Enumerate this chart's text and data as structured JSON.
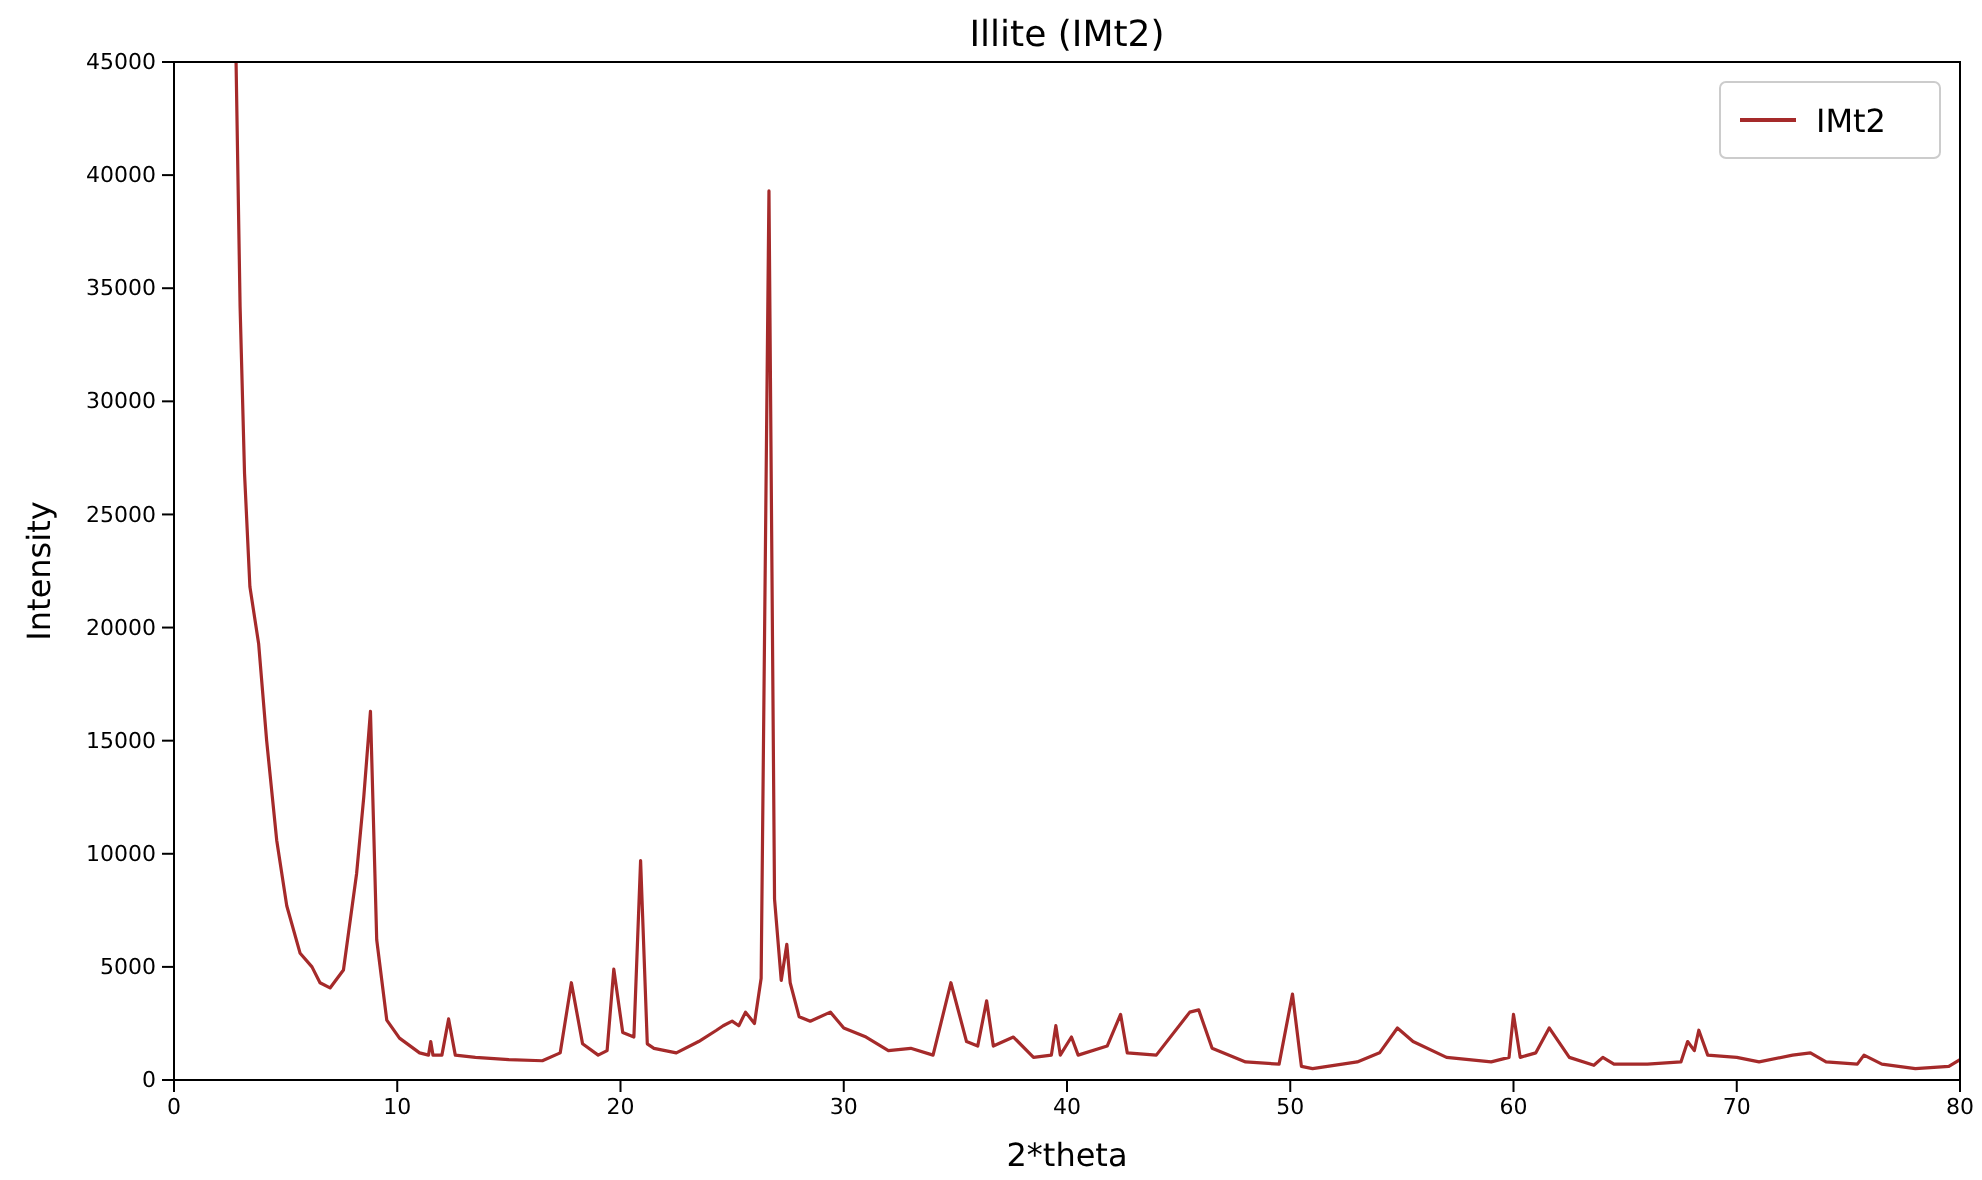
{
  "chart_data": {
    "type": "line",
    "title": "Illite (IMt2)",
    "xlabel": "2*theta",
    "ylabel": "Intensity",
    "xlim": [
      0,
      80
    ],
    "ylim": [
      0,
      45000
    ],
    "xticks": [
      0,
      10,
      20,
      30,
      40,
      50,
      60,
      70,
      80
    ],
    "yticks": [
      0,
      5000,
      10000,
      15000,
      20000,
      25000,
      30000,
      35000,
      40000,
      45000
    ],
    "grid": false,
    "legend": "top right",
    "marker": "none",
    "line_style": "solid",
    "series": [
      {
        "name": "IMt2",
        "color": "#a52a2a",
        "x": [
          2.78,
          2.96,
          3.16,
          3.4,
          3.79,
          4.15,
          4.6,
          5.05,
          5.65,
          6.18,
          6.54,
          6.99,
          7.59,
          8.18,
          8.5,
          8.8,
          9.08,
          9.53,
          10.1,
          11.0,
          11.4,
          11.5,
          11.6,
          12.0,
          12.3,
          12.6,
          13.5,
          15,
          16.5,
          17.3,
          17.8,
          18.3,
          19.0,
          19.4,
          19.7,
          20.1,
          20.6,
          20.9,
          21.2,
          21.5,
          22.5,
          23.5,
          24.3,
          24.6,
          25.0,
          25.3,
          25.6,
          26.0,
          26.3,
          26.65,
          26.9,
          27.2,
          27.45,
          27.6,
          28.0,
          28.5,
          29.4,
          30,
          31,
          32,
          33,
          34,
          34.8,
          35.5,
          36.0,
          36.4,
          36.7,
          37.6,
          38.5,
          39.3,
          39.5,
          39.7,
          40.2,
          40.5,
          41.8,
          42.4,
          42.7,
          44,
          45.5,
          45.9,
          46.5,
          48,
          49.5,
          50.1,
          50.5,
          51,
          53,
          54,
          54.8,
          55.5,
          57,
          59,
          59.8,
          60.0,
          60.3,
          61.0,
          61.6,
          62.5,
          63.6,
          64.0,
          64.5,
          66,
          67.5,
          67.8,
          68.1,
          68.3,
          68.7,
          70,
          71,
          72.5,
          73.3,
          74,
          75.4,
          75.7,
          76.5,
          78,
          79.5,
          80
        ],
        "values": [
          45000,
          34200,
          26800,
          21800,
          19300,
          15000,
          10600,
          7700,
          5600,
          5000,
          4300,
          4070,
          4860,
          9130,
          12500,
          16300,
          6200,
          2650,
          1850,
          1200,
          1100,
          1700,
          1100,
          1100,
          2700,
          1100,
          1000,
          900,
          850,
          1200,
          4300,
          1600,
          1100,
          1300,
          4900,
          2100,
          1900,
          9700,
          1600,
          1400,
          1200,
          1700,
          2200,
          2400,
          2600,
          2400,
          3000,
          2500,
          4500,
          39300,
          8000,
          4400,
          6000,
          4300,
          2800,
          2600,
          3000,
          2300,
          1900,
          1300,
          1400,
          1100,
          4300,
          1700,
          1500,
          3500,
          1500,
          1900,
          1000,
          1100,
          2400,
          1100,
          1900,
          1100,
          1500,
          2900,
          1200,
          1100,
          3000,
          3100,
          1400,
          800,
          700,
          3800,
          600,
          500,
          800,
          1200,
          2300,
          1700,
          1000,
          800,
          1000,
          2900,
          1000,
          1200,
          2300,
          1000,
          650,
          1000,
          700,
          700,
          800,
          1700,
          1300,
          2200,
          1100,
          1000,
          800,
          1100,
          1200,
          800,
          700,
          1100,
          700,
          500,
          600,
          900
        ]
      }
    ]
  }
}
